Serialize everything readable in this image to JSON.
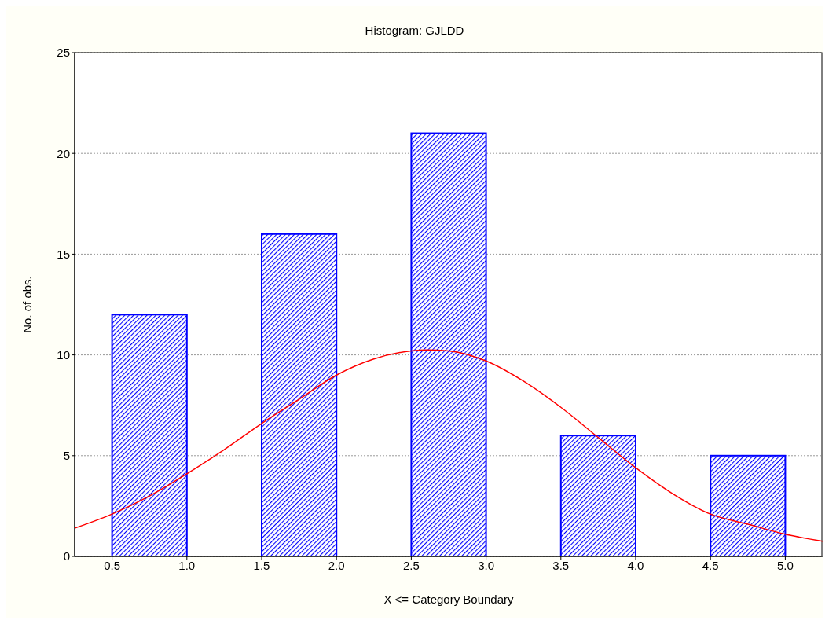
{
  "chart_data": {
    "type": "histogram",
    "title": "Histogram: GJLDD",
    "xlabel": "X <= Category Boundary",
    "ylabel": "No. of obs.",
    "bins": [
      0.5,
      1.0,
      1.5,
      2.0,
      2.5,
      3.0,
      3.5,
      4.0,
      4.5,
      5.0
    ],
    "values": [
      12,
      0,
      16,
      0,
      21,
      0,
      6,
      0,
      5
    ],
    "color": "#0000ff",
    "series": [
      {
        "type": "line",
        "color": "#ff0000",
        "x": [
          0.25,
          0.5,
          0.75,
          1.0,
          1.25,
          1.5,
          1.75,
          2.0,
          2.25,
          2.5,
          2.6,
          2.75,
          3.0,
          3.25,
          3.5,
          3.75,
          4.0,
          4.25,
          4.5,
          4.75,
          5.0,
          5.25
        ],
        "values": [
          1.4,
          2.1,
          3.0,
          4.1,
          5.3,
          6.6,
          7.8,
          9.0,
          9.8,
          10.2,
          10.25,
          10.2,
          9.7,
          8.7,
          7.4,
          5.9,
          4.4,
          3.1,
          2.1,
          1.6,
          1.1,
          0.75
        ]
      }
    ],
    "xlim": [
      0.25,
      5.25
    ],
    "xticks": [
      0.5,
      {
        "value": 1,
        "label": "1.0"
      },
      1.5,
      {
        "value": 2,
        "label": "2.0"
      },
      2.5,
      {
        "value": 3,
        "label": "3.0"
      },
      3.5,
      {
        "value": 4,
        "label": "4.0"
      },
      4.5,
      {
        "value": 5,
        "label": "5.0"
      }
    ],
    "ylim": [
      0,
      25
    ],
    "yticks": [
      0,
      5,
      10,
      15,
      20,
      25
    ],
    "grid": "y"
  }
}
